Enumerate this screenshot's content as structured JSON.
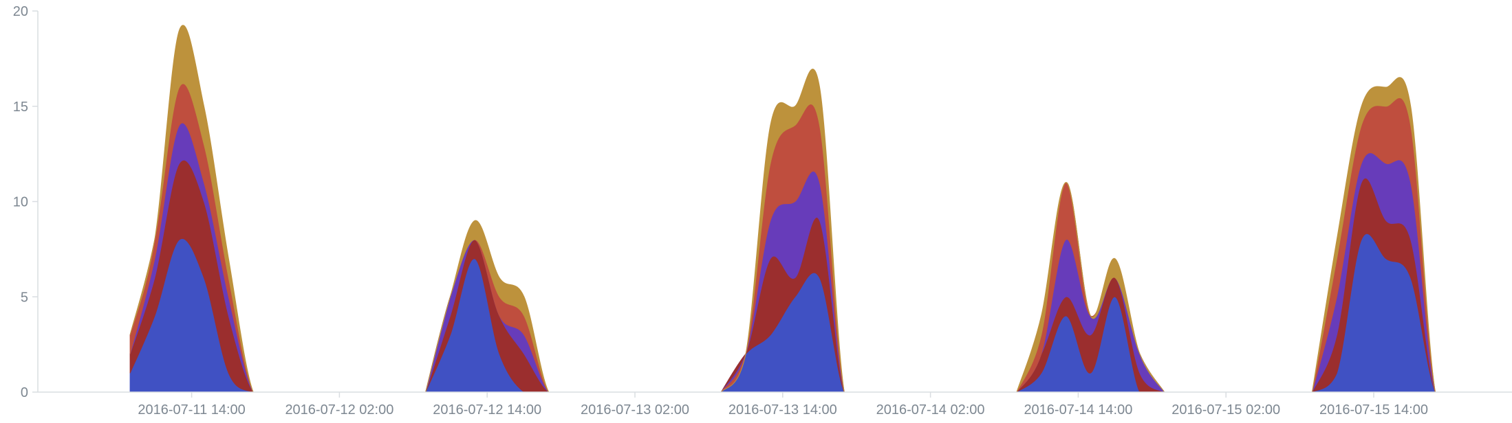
{
  "chart_data": {
    "type": "area",
    "stacked": true,
    "title": "",
    "xlabel": "",
    "ylabel": "",
    "ylim": [
      0,
      20
    ],
    "xlim": [
      "2016-07-11 00:00",
      "2016-07-16 00:00"
    ],
    "grid": false,
    "legend": "none",
    "y_ticks": [
      0,
      5,
      10,
      15,
      20
    ],
    "x_tick_labels": [
      "2016-07-11 14:00",
      "2016-07-12 02:00",
      "2016-07-12 14:00",
      "2016-07-13 02:00",
      "2016-07-13 14:00",
      "2016-07-14 02:00",
      "2016-07-14 14:00",
      "2016-07-15 02:00",
      "2016-07-15 14:00"
    ],
    "x": [
      "2016-07-11 09:00",
      "2016-07-11 11:00",
      "2016-07-11 13:00",
      "2016-07-11 15:00",
      "2016-07-11 17:00",
      "2016-07-11 19:00",
      "2016-07-11 21:00",
      "2016-07-12 09:00",
      "2016-07-12 11:00",
      "2016-07-12 13:00",
      "2016-07-12 15:00",
      "2016-07-12 17:00",
      "2016-07-12 19:00",
      "2016-07-12 21:00",
      "2016-07-13 09:00",
      "2016-07-13 11:00",
      "2016-07-13 13:00",
      "2016-07-13 15:00",
      "2016-07-13 17:00",
      "2016-07-13 19:00",
      "2016-07-13 21:00",
      "2016-07-14 09:00",
      "2016-07-14 11:00",
      "2016-07-14 13:00",
      "2016-07-14 15:00",
      "2016-07-14 17:00",
      "2016-07-14 19:00",
      "2016-07-14 21:00",
      "2016-07-15 09:00",
      "2016-07-15 11:00",
      "2016-07-15 13:00",
      "2016-07-15 15:00",
      "2016-07-15 17:00",
      "2016-07-15 19:00",
      "2016-07-15 21:00"
    ],
    "colors": [
      "#4051c3",
      "#9b2e2e",
      "#673cba",
      "#bf4e3e",
      "#bd923c"
    ],
    "series": [
      {
        "values": [
          1,
          4,
          8,
          6,
          1,
          0,
          0,
          0,
          3,
          7,
          2,
          0,
          0,
          0,
          0,
          2,
          3,
          5,
          6,
          0,
          0,
          0,
          1,
          4,
          1,
          5,
          0,
          0,
          0,
          1,
          8,
          7,
          6,
          0,
          0
        ]
      },
      {
        "values": [
          1,
          2,
          4,
          4,
          3,
          0,
          0,
          0,
          1,
          1,
          2,
          2,
          0,
          0,
          0,
          0,
          4,
          1,
          3,
          0,
          0,
          0,
          1,
          1,
          2,
          1,
          1,
          0,
          0,
          2,
          3,
          2,
          2,
          0,
          0
        ]
      },
      {
        "values": [
          0,
          1,
          2,
          1,
          1,
          0,
          0,
          0,
          1,
          0,
          0,
          1,
          0,
          0,
          0,
          0,
          2,
          4,
          2,
          0,
          0,
          0,
          0,
          3,
          1,
          0,
          1,
          0,
          0,
          2,
          1,
          3,
          3,
          0,
          0
        ]
      },
      {
        "values": [
          1,
          1,
          2,
          2,
          1,
          0,
          0,
          0,
          0,
          0,
          1,
          1,
          0,
          0,
          0,
          0,
          3,
          4,
          3,
          0,
          0,
          0,
          1,
          3,
          0,
          0,
          0,
          0,
          0,
          2,
          2,
          3,
          3,
          0,
          0
        ]
      },
      {
        "values": [
          0,
          0,
          3,
          2,
          1,
          0,
          0,
          0,
          0,
          1,
          1,
          1,
          0,
          0,
          0,
          0,
          2,
          1,
          2,
          0,
          0,
          0,
          1,
          0,
          0,
          1,
          0,
          0,
          0,
          1,
          1,
          1,
          1,
          0,
          0
        ]
      }
    ]
  }
}
